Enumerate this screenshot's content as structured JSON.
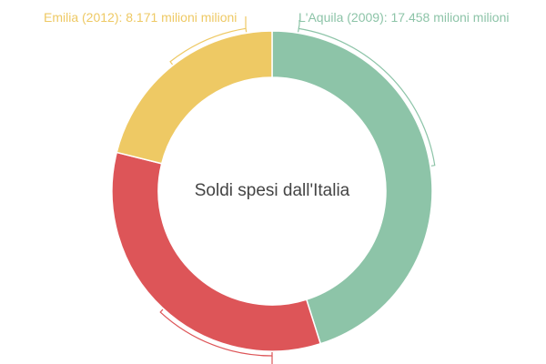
{
  "chart_data": {
    "type": "pie",
    "variant": "donut",
    "title": "Soldi spesi dall'Italia",
    "unit": "milioni",
    "center": [
      299,
      210
    ],
    "outer_radius": 176,
    "inner_radius": 125,
    "start_angle_deg": 0,
    "direction": "clockwise",
    "slices": [
      {
        "name": "L'Aquila (2009)",
        "value": 17.458,
        "color": "#8dc4a8",
        "label": "L'Aquila (2009): 17.458 milioni milioni",
        "label_visible": true
      },
      {
        "name": "",
        "value": 13.07,
        "color": "#dd5558",
        "label": "",
        "label_visible": false,
        "note": "label cut off below image; value estimated from arc angle"
      },
      {
        "name": "Emilia (2012)",
        "value": 8.171,
        "color": "#eec964",
        "label": "Emilia (2012): 8.171 milioni milioni",
        "label_visible": true
      }
    ],
    "legend": "none",
    "grid": false
  },
  "labels": {
    "green": "L'Aquila (2009): 17.458 milioni milioni",
    "yellow": "Emilia (2012): 8.171 milioni milioni"
  },
  "colors": {
    "green": "#8dc4a8",
    "red": "#dd5558",
    "yellow": "#eec964",
    "title": "#444444"
  },
  "center_title": "Soldi spesi dall'Italia"
}
